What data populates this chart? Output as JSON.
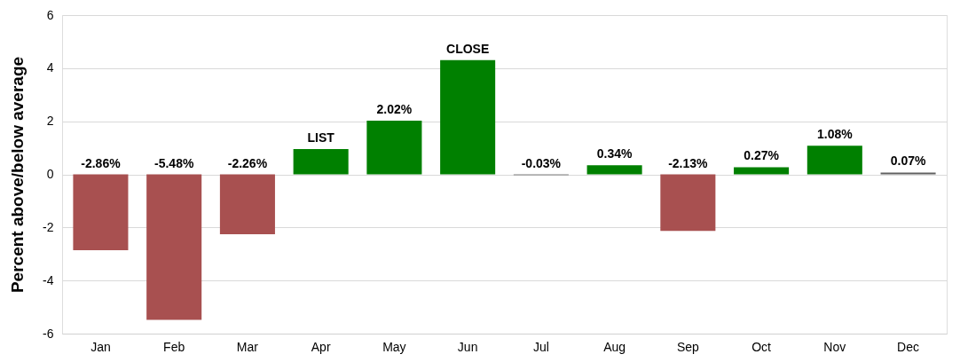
{
  "chart_data": {
    "type": "bar",
    "ylabel": "Percent above/below average",
    "categories": [
      "Jan",
      "Feb",
      "Mar",
      "Apr",
      "May",
      "Jun",
      "Jul",
      "Aug",
      "Sep",
      "Oct",
      "Nov",
      "Dec"
    ],
    "values": [
      -2.86,
      -5.48,
      -2.26,
      0.95,
      2.02,
      4.3,
      -0.03,
      0.34,
      -2.13,
      0.27,
      1.08,
      0.07
    ],
    "value_labels": [
      "-2.86%",
      "-5.48%",
      "-2.26%",
      "LIST",
      "2.02%",
      "CLOSE",
      "-0.03%",
      "0.34%",
      "-2.13%",
      "0.27%",
      "1.08%",
      "0.07%"
    ],
    "colors": [
      "#a85050",
      "#a85050",
      "#a85050",
      "#008000",
      "#008000",
      "#008000",
      "#808080",
      "#008000",
      "#a85050",
      "#008000",
      "#008000",
      "#606060"
    ],
    "ylim": [
      -6,
      6
    ],
    "yticks": [
      -6,
      -4,
      -2,
      0,
      2,
      4,
      6
    ],
    "grid": "y"
  }
}
